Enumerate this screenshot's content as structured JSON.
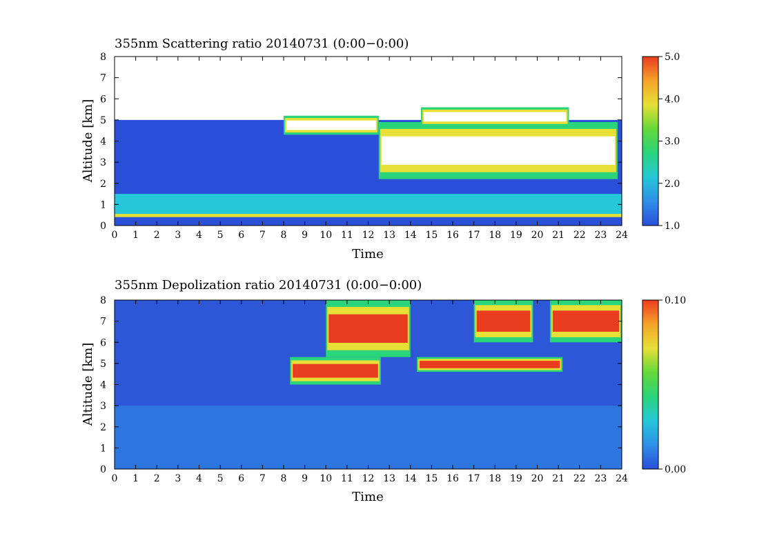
{
  "chart_data": [
    {
      "type": "heatmap",
      "title": "355nm Scattering ratio  20140731 (0:00−0:00)",
      "xlabel": "Time",
      "ylabel": "Altitude [km]",
      "xlim": [
        0,
        24
      ],
      "ylim": [
        0,
        8
      ],
      "x_ticks": [
        "0",
        "1",
        "2",
        "3",
        "4",
        "5",
        "6",
        "7",
        "8",
        "9",
        "10",
        "11",
        "12",
        "13",
        "14",
        "15",
        "16",
        "17",
        "18",
        "19",
        "20",
        "21",
        "22",
        "23",
        "24"
      ],
      "y_ticks": [
        "0",
        "1",
        "2",
        "3",
        "4",
        "5",
        "6",
        "7",
        "8"
      ],
      "colorbar": {
        "range": [
          1.0,
          5.0
        ],
        "tick_labels": [
          "1.0",
          "2.0",
          "3.0",
          "4.0",
          "5.0"
        ],
        "tick_values": [
          1.0,
          2.0,
          3.0,
          4.0,
          5.0
        ],
        "colors": [
          "#2a4fd8",
          "#2f8fe8",
          "#25c7d8",
          "#2ad47a",
          "#64d83a",
          "#e6e036",
          "#f5a32a",
          "#ea3c1f"
        ]
      },
      "cloud_layers": [
        {
          "t_start": 8.0,
          "t_end": 12.5,
          "z_bottom": 4.3,
          "z_top": 5.2
        },
        {
          "t_start": 12.5,
          "t_end": 23.8,
          "z_bottom": 2.2,
          "z_top": 4.9
        },
        {
          "t_start": 14.5,
          "t_end": 21.5,
          "z_bottom": 4.7,
          "z_top": 5.6
        }
      ]
    },
    {
      "type": "heatmap",
      "title": "355nm Depolization ratio  20140731 (0:00−0:00)",
      "xlabel": "Time",
      "ylabel": "Altitude [km]",
      "xlim": [
        0,
        24
      ],
      "ylim": [
        0,
        8
      ],
      "x_ticks": [
        "0",
        "1",
        "2",
        "3",
        "4",
        "5",
        "6",
        "7",
        "8",
        "9",
        "10",
        "11",
        "12",
        "13",
        "14",
        "15",
        "16",
        "17",
        "18",
        "19",
        "20",
        "21",
        "22",
        "23",
        "24"
      ],
      "y_ticks": [
        "0",
        "1",
        "2",
        "3",
        "4",
        "5",
        "6",
        "7",
        "8"
      ],
      "colorbar": {
        "range": [
          0.0,
          0.1
        ],
        "tick_labels": [
          "0.00",
          "0.10"
        ],
        "tick_values": [
          0.0,
          0.1
        ],
        "colors": [
          "#2a4fd8",
          "#2f8fe8",
          "#25c7d8",
          "#2ad47a",
          "#64d83a",
          "#e6e036",
          "#f5a32a",
          "#ea3c1f"
        ]
      },
      "cloud_layers": [
        {
          "t_start": 8.3,
          "t_end": 12.6,
          "z_bottom": 4.0,
          "z_top": 5.3
        },
        {
          "t_start": 14.3,
          "t_end": 21.2,
          "z_bottom": 4.6,
          "z_top": 5.3
        },
        {
          "t_start": 10.0,
          "t_end": 14.0,
          "z_bottom": 5.3,
          "z_top": 8.0
        },
        {
          "t_start": 17.0,
          "t_end": 19.8,
          "z_bottom": 6.0,
          "z_top": 8.0
        },
        {
          "t_start": 20.6,
          "t_end": 24.0,
          "z_bottom": 6.0,
          "z_top": 8.0
        }
      ]
    }
  ]
}
